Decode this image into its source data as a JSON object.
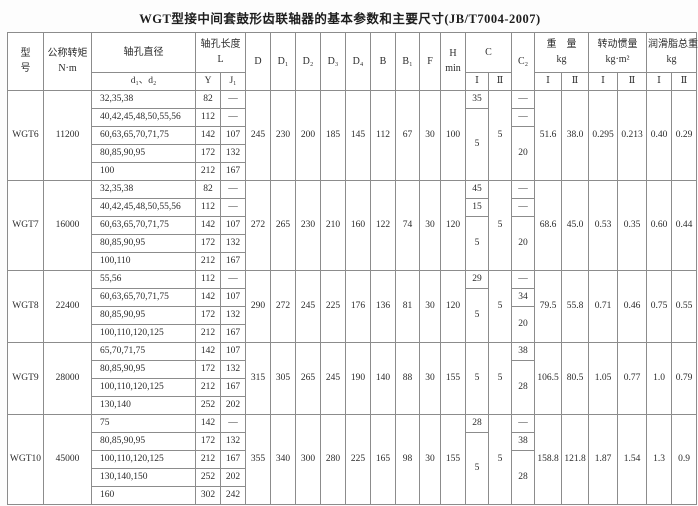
{
  "title": "WGT型接中间套鼓形齿联轴器的基本参数和主要尺寸(JB/T7004-2007)",
  "table": {
    "headers": {
      "model_top": "型",
      "model_bottom": "号",
      "torque_line1": "公称转矩",
      "torque_line2": "N·m",
      "bore_diameter": "轴孔直径",
      "bore_diameter_sub": "d₁、d₂",
      "bore_length": "轴孔长度",
      "bore_length_unit": "L",
      "col_Y": "Y",
      "col_J1": "J₁",
      "dims": [
        "D",
        "D₁",
        "D₂",
        "D₃",
        "D₄",
        "B",
        "B₁",
        "F"
      ],
      "h_top": "H",
      "h_bottom": "min",
      "c_label": "C",
      "c2_label": "C₂",
      "weight_line1": "重　量",
      "weight_line2": "kg",
      "inertia_line1": "转动惯量",
      "inertia_line2": "kg·m²",
      "grease_line1": "润滑脂总重",
      "grease_line2": "kg",
      "sub_I": "Ⅰ",
      "sub_II": "Ⅱ"
    },
    "groups": [
      {
        "model": "WGT6",
        "torque": "11200",
        "bores": [
          {
            "d": "32,35,38",
            "Y": "82",
            "J1": "—"
          },
          {
            "d": "40,42,45,48,50,55,56",
            "Y": "112",
            "J1": "—"
          },
          {
            "d": "60,63,65,70,71,75",
            "Y": "142",
            "J1": "107"
          },
          {
            "d": "80,85,90,95",
            "Y": "172",
            "J1": "132"
          },
          {
            "d": "100",
            "Y": "212",
            "J1": "167"
          }
        ],
        "dims": {
          "D": "245",
          "D1": "230",
          "D2": "200",
          "D3": "185",
          "D4": "145",
          "B": "112",
          "B1": "67",
          "F": "30",
          "Hmin": "100"
        },
        "C_I": [
          {
            "text": "35",
            "span": 1
          },
          {
            "text": "5",
            "span": 4
          }
        ],
        "C_II": [
          {
            "text": "5",
            "span": 5
          }
        ],
        "C2": [
          {
            "text": "—",
            "span": 1
          },
          {
            "text": "—",
            "span": 1
          },
          {
            "text": "20",
            "span": 3
          }
        ],
        "weight": {
          "I": "51.6",
          "II": "38.0"
        },
        "inertia": {
          "I": "0.295",
          "II": "0.213"
        },
        "grease": {
          "I": "0.40",
          "II": "0.29"
        }
      },
      {
        "model": "WGT7",
        "torque": "16000",
        "bores": [
          {
            "d": "32,35,38",
            "Y": "82",
            "J1": "—"
          },
          {
            "d": "40,42,45,48,50,55,56",
            "Y": "112",
            "J1": "—"
          },
          {
            "d": "60,63,65,70,71,75",
            "Y": "142",
            "J1": "107"
          },
          {
            "d": "80,85,90,95",
            "Y": "172",
            "J1": "132"
          },
          {
            "d": "100,110",
            "Y": "212",
            "J1": "167"
          }
        ],
        "dims": {
          "D": "272",
          "D1": "265",
          "D2": "230",
          "D3": "210",
          "D4": "160",
          "B": "122",
          "B1": "74",
          "F": "30",
          "Hmin": "120"
        },
        "C_I": [
          {
            "text": "45",
            "span": 1
          },
          {
            "text": "15",
            "span": 1
          },
          {
            "text": "5",
            "span": 3
          }
        ],
        "C_II": [
          {
            "text": "5",
            "span": 5
          }
        ],
        "C2": [
          {
            "text": "—",
            "span": 1
          },
          {
            "text": "—",
            "span": 1
          },
          {
            "text": "20",
            "span": 3
          }
        ],
        "weight": {
          "I": "68.6",
          "II": "45.0"
        },
        "inertia": {
          "I": "0.53",
          "II": "0.35"
        },
        "grease": {
          "I": "0.60",
          "II": "0.44"
        }
      },
      {
        "model": "WGT8",
        "torque": "22400",
        "bores": [
          {
            "d": "55,56",
            "Y": "112",
            "J1": "—"
          },
          {
            "d": "60,63,65,70,71,75",
            "Y": "142",
            "J1": "107"
          },
          {
            "d": "80,85,90,95",
            "Y": "172",
            "J1": "132"
          },
          {
            "d": "100,110,120,125",
            "Y": "212",
            "J1": "167"
          }
        ],
        "dims": {
          "D": "290",
          "D1": "272",
          "D2": "245",
          "D3": "225",
          "D4": "176",
          "B": "136",
          "B1": "81",
          "F": "30",
          "Hmin": "120"
        },
        "C_I": [
          {
            "text": "29",
            "span": 1
          },
          {
            "text": "5",
            "span": 3
          }
        ],
        "C_II": [
          {
            "text": "5",
            "span": 4
          }
        ],
        "C2": [
          {
            "text": "—",
            "span": 1
          },
          {
            "text": "34",
            "span": 1
          },
          {
            "text": "20",
            "span": 2
          }
        ],
        "weight": {
          "I": "79.5",
          "II": "55.8"
        },
        "inertia": {
          "I": "0.71",
          "II": "0.46"
        },
        "grease": {
          "I": "0.75",
          "II": "0.55"
        }
      },
      {
        "model": "WGT9",
        "torque": "28000",
        "bores": [
          {
            "d": "65,70,71,75",
            "Y": "142",
            "J1": "107"
          },
          {
            "d": "80,85,90,95",
            "Y": "172",
            "J1": "132"
          },
          {
            "d": "100,110,120,125",
            "Y": "212",
            "J1": "167"
          },
          {
            "d": "130,140",
            "Y": "252",
            "J1": "202"
          }
        ],
        "dims": {
          "D": "315",
          "D1": "305",
          "D2": "265",
          "D3": "245",
          "D4": "190",
          "B": "140",
          "B1": "88",
          "F": "30",
          "Hmin": "155"
        },
        "C_I": [
          {
            "text": "5",
            "span": 4
          }
        ],
        "C_II": [
          {
            "text": "5",
            "span": 4
          }
        ],
        "C2": [
          {
            "text": "38",
            "span": 1
          },
          {
            "text": "28",
            "span": 3
          }
        ],
        "weight": {
          "I": "106.5",
          "II": "80.5"
        },
        "inertia": {
          "I": "1.05",
          "II": "0.77"
        },
        "grease": {
          "I": "1.0",
          "II": "0.79"
        }
      },
      {
        "model": "WGT10",
        "torque": "45000",
        "bores": [
          {
            "d": "75",
            "Y": "142",
            "J1": "—"
          },
          {
            "d": "80,85,90,95",
            "Y": "172",
            "J1": "132"
          },
          {
            "d": "100,110,120,125",
            "Y": "212",
            "J1": "167"
          },
          {
            "d": "130,140,150",
            "Y": "252",
            "J1": "202"
          },
          {
            "d": "160",
            "Y": "302",
            "J1": "242"
          }
        ],
        "dims": {
          "D": "355",
          "D1": "340",
          "D2": "300",
          "D3": "280",
          "D4": "225",
          "B": "165",
          "B1": "98",
          "F": "30",
          "Hmin": "155"
        },
        "C_I": [
          {
            "text": "28",
            "span": 1
          },
          {
            "text": "5",
            "span": 4
          }
        ],
        "C_II": [
          {
            "text": "5",
            "span": 5
          }
        ],
        "C2": [
          {
            "text": "—",
            "span": 1
          },
          {
            "text": "38",
            "span": 1
          },
          {
            "text": "28",
            "span": 3
          }
        ],
        "weight": {
          "I": "158.8",
          "II": "121.8"
        },
        "inertia": {
          "I": "1.87",
          "II": "1.54"
        },
        "grease": {
          "I": "1.3",
          "II": "0.9"
        }
      }
    ]
  }
}
